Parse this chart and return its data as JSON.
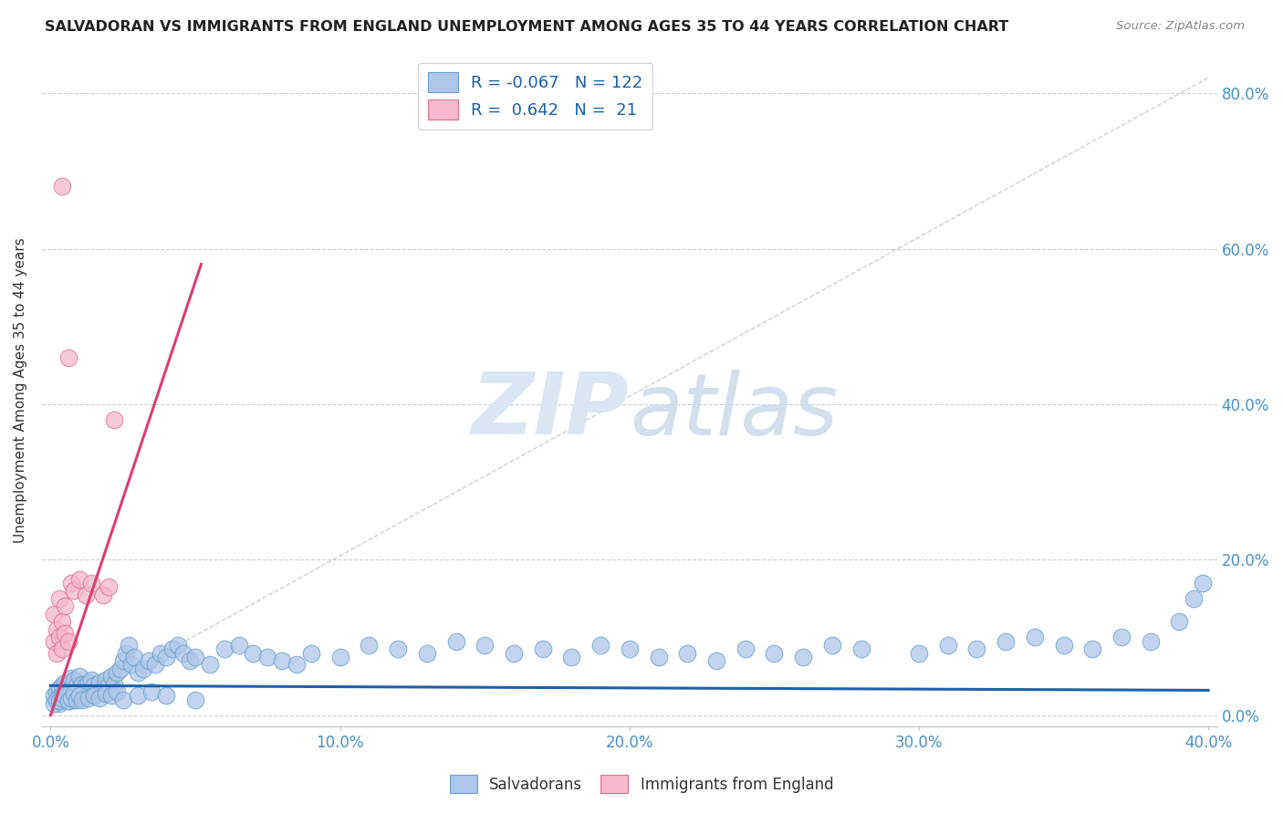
{
  "title": "SALVADORAN VS IMMIGRANTS FROM ENGLAND UNEMPLOYMENT AMONG AGES 35 TO 44 YEARS CORRELATION CHART",
  "source": "Source: ZipAtlas.com",
  "ylabel": "Unemployment Among Ages 35 to 44 years",
  "xlim": [
    0.0,
    0.4
  ],
  "ylim": [
    0.0,
    0.85
  ],
  "yticks": [
    0.0,
    0.2,
    0.4,
    0.6,
    0.8
  ],
  "xticks": [
    0.0,
    0.1,
    0.2,
    0.3,
    0.4
  ],
  "blue_R": -0.067,
  "blue_N": 122,
  "pink_R": 0.642,
  "pink_N": 21,
  "blue_color": "#aec6e8",
  "blue_edge_color": "#6aa0d0",
  "pink_color": "#f5b8cc",
  "pink_edge_color": "#e0708a",
  "blue_line_color": "#2060a8",
  "pink_line_color": "#d84070",
  "dash_line_color": "#c8c8c8",
  "watermark_color": "#dae6f2",
  "legend_blue_label": "Salvadorans",
  "legend_pink_label": "Immigrants from England",
  "blue_scatter_x": [
    0.001,
    0.002,
    0.002,
    0.003,
    0.003,
    0.003,
    0.004,
    0.004,
    0.004,
    0.005,
    0.005,
    0.005,
    0.006,
    0.006,
    0.006,
    0.007,
    0.007,
    0.007,
    0.008,
    0.008,
    0.008,
    0.009,
    0.009,
    0.01,
    0.01,
    0.01,
    0.011,
    0.011,
    0.012,
    0.012,
    0.013,
    0.013,
    0.014,
    0.014,
    0.015,
    0.015,
    0.016,
    0.017,
    0.018,
    0.019,
    0.02,
    0.021,
    0.022,
    0.023,
    0.024,
    0.025,
    0.026,
    0.027,
    0.028,
    0.029,
    0.03,
    0.032,
    0.034,
    0.036,
    0.038,
    0.04,
    0.042,
    0.044,
    0.046,
    0.048,
    0.05,
    0.055,
    0.06,
    0.065,
    0.07,
    0.075,
    0.08,
    0.085,
    0.09,
    0.1,
    0.11,
    0.12,
    0.13,
    0.14,
    0.15,
    0.16,
    0.17,
    0.18,
    0.19,
    0.2,
    0.21,
    0.22,
    0.23,
    0.24,
    0.25,
    0.26,
    0.27,
    0.28,
    0.3,
    0.31,
    0.32,
    0.33,
    0.34,
    0.35,
    0.36,
    0.37,
    0.38,
    0.39,
    0.395,
    0.398,
    0.001,
    0.002,
    0.003,
    0.004,
    0.005,
    0.006,
    0.007,
    0.008,
    0.009,
    0.01,
    0.011,
    0.013,
    0.015,
    0.017,
    0.019,
    0.021,
    0.023,
    0.025,
    0.03,
    0.035,
    0.04,
    0.05
  ],
  "blue_scatter_y": [
    0.025,
    0.02,
    0.03,
    0.015,
    0.025,
    0.035,
    0.02,
    0.028,
    0.038,
    0.022,
    0.03,
    0.042,
    0.018,
    0.032,
    0.04,
    0.025,
    0.035,
    0.048,
    0.02,
    0.03,
    0.045,
    0.028,
    0.038,
    0.022,
    0.035,
    0.05,
    0.028,
    0.04,
    0.025,
    0.038,
    0.028,
    0.042,
    0.03,
    0.045,
    0.025,
    0.038,
    0.032,
    0.042,
    0.035,
    0.045,
    0.038,
    0.05,
    0.04,
    0.055,
    0.06,
    0.07,
    0.08,
    0.09,
    0.065,
    0.075,
    0.055,
    0.06,
    0.07,
    0.065,
    0.08,
    0.075,
    0.085,
    0.09,
    0.08,
    0.07,
    0.075,
    0.065,
    0.085,
    0.09,
    0.08,
    0.075,
    0.07,
    0.065,
    0.08,
    0.075,
    0.09,
    0.085,
    0.08,
    0.095,
    0.09,
    0.08,
    0.085,
    0.075,
    0.09,
    0.085,
    0.075,
    0.08,
    0.07,
    0.085,
    0.08,
    0.075,
    0.09,
    0.085,
    0.08,
    0.09,
    0.085,
    0.095,
    0.1,
    0.09,
    0.085,
    0.1,
    0.095,
    0.12,
    0.15,
    0.17,
    0.015,
    0.02,
    0.018,
    0.022,
    0.025,
    0.018,
    0.022,
    0.028,
    0.02,
    0.025,
    0.02,
    0.022,
    0.025,
    0.022,
    0.028,
    0.025,
    0.03,
    0.02,
    0.025,
    0.03,
    0.025,
    0.02
  ],
  "pink_scatter_x": [
    0.001,
    0.001,
    0.002,
    0.002,
    0.003,
    0.003,
    0.004,
    0.004,
    0.004,
    0.005,
    0.005,
    0.006,
    0.006,
    0.007,
    0.008,
    0.01,
    0.012,
    0.014,
    0.018,
    0.02,
    0.022
  ],
  "pink_scatter_y": [
    0.095,
    0.13,
    0.08,
    0.11,
    0.1,
    0.15,
    0.085,
    0.12,
    0.68,
    0.105,
    0.14,
    0.095,
    0.46,
    0.17,
    0.16,
    0.175,
    0.155,
    0.17,
    0.155,
    0.165,
    0.38
  ],
  "pink_line_x": [
    0.0,
    0.052
  ],
  "pink_line_y": [
    0.0,
    0.58
  ],
  "blue_line_x": [
    0.0,
    0.4
  ],
  "blue_line_y": [
    0.038,
    0.032
  ],
  "dash_line_x": [
    0.0,
    0.4
  ],
  "dash_line_y": [
    0.0,
    0.82
  ]
}
